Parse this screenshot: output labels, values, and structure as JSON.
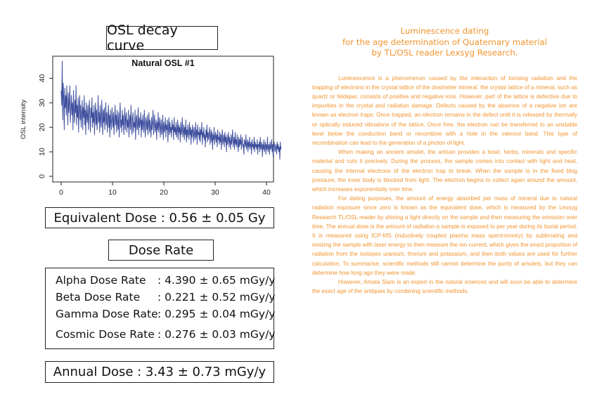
{
  "left": {
    "title": "OSL decay curve",
    "equivalent_dose": "Equivalent Dose : 0.56 ± 0.05 Gy",
    "dose_rate_header": "Dose Rate",
    "dose_rates": [
      {
        "label": "Alpha Dose Rate",
        "value": ": 4.390 ± 0.65 mGy/y"
      },
      {
        "label": "Beta Dose Rate",
        "value": ": 0.221 ± 0.52 mGy/y"
      },
      {
        "label": "Gamma Dose Rate",
        "value": ": 0.295 ± 0.04 mGy/y"
      },
      {
        "label": "Cosmic Dose Rate",
        "value": ": 0.276 ± 0.03 mGy/y"
      }
    ],
    "annual_dose": "Annual Dose : 3.43 ± 0.73 mGy/y"
  },
  "right": {
    "heading_lines": [
      "Luminescence dating",
      "for the age determination of Quaternary material",
      "by TL/OSL reader Lexsyg Research."
    ],
    "paragraphs": [
      "Luminescence is a phenomenon caused by the interaction of ionising radiation and the trapping of electrons in the crystal lattice of the dosimeter mineral. the crystal lattice of a mineral, such as quartz or feldspar, consists of positive and negative ions. However, part of the lattice is defective due to impurities in the crystal and radiation damage. Defects caused by the absence of a negative ion are known as electron traps. Once trapped, an electron remains in the defect until it is released by thermally or optically induced vibrations of the lattice. Once free, the electron can be transferred to an unstable level below the conduction band or recombine with a hole in the valence band. This type of recombination can lead to the generation of a photon of light.",
      "When making an ancient amulet, the artisan provides a bowl, herbs, minerals and specific material and cuts it precisely. During the process, the sample comes into contact with light and heat, causing the internal electrons of the electron trap to break. When the sample is in the fixed blog pressure, the inner body is blocked from light. The electron begins to collect again around the amount, which increases exponentially over time.",
      "For dating purposes, the amount of energy absorbed per mass of mineral due to natural radiation exposure since zero is known as the equivalent dose, which is measured by the Lexsyg Research TL/OSL reader by shining a light directly on the sample and then measuring the emission over time. The annual dose is the amount of radiation a sample is exposed to per year during its burial period. It is measured using ICP-MS (inductively coupled plasma mass spectrometry) by sublimating and ionizing the sample with laser energy to then measure the ion current, which gives the exact proportion of radiation from the isotopes uranium, thorium and potassium, and then both values are used for further calculation. To summarise, scientific methods still cannot determine the purity of amulets, but they can determine how long ago they were made.",
      "However, Amata Siam is an expert in the natural sciences and will soon be able to determine the exact age of the antiques by combining scientific methods."
    ],
    "text_color": "#f0932e"
  },
  "chart_data": {
    "type": "line",
    "title": "Natural OSL #1",
    "xlabel": "",
    "ylabel": "OSL intensity",
    "xlim": [
      0,
      40
    ],
    "ylim": [
      0,
      47
    ],
    "x_ticks": [
      0,
      10,
      20,
      30,
      40
    ],
    "y_ticks": [
      0,
      10,
      20,
      30,
      40
    ],
    "grid": false,
    "line_color": "#3f4f9e",
    "series": [
      {
        "x_start": 0,
        "x_step": 0.1,
        "values": [
          35,
          29,
          47,
          23,
          38,
          31,
          19,
          36,
          28,
          33,
          25,
          37,
          29,
          21,
          34,
          26,
          31,
          37,
          22,
          28,
          33,
          25,
          30,
          19,
          35,
          27,
          22,
          31,
          26,
          37,
          21,
          29,
          24,
          32,
          18,
          27,
          33,
          23,
          29,
          20,
          26,
          31,
          19,
          28,
          24,
          33,
          21,
          27,
          17,
          30,
          25,
          22,
          29,
          19,
          26,
          31,
          23,
          18,
          28,
          24,
          32,
          20,
          26,
          22,
          29,
          17,
          25,
          30,
          21,
          27,
          19,
          24,
          33,
          22,
          26,
          18,
          29,
          23,
          20,
          31,
          25,
          17,
          27,
          22,
          28,
          19,
          24,
          30,
          21,
          26,
          18,
          23,
          29,
          20,
          25,
          16,
          27,
          22,
          19,
          28,
          24,
          20,
          26,
          17,
          23,
          29,
          21,
          25,
          18,
          27,
          22,
          19,
          26,
          16,
          24,
          30,
          20,
          23,
          18,
          27,
          21,
          25,
          17,
          22,
          28,
          19,
          24,
          26,
          18,
          23,
          20,
          27,
          16,
          22,
          25,
          19,
          29,
          21,
          17,
          24,
          26,
          18,
          22,
          20,
          27,
          15,
          23,
          25,
          19,
          21,
          28,
          17,
          24,
          20,
          22,
          26,
          16,
          23,
          19,
          25,
          21,
          18,
          27,
          20,
          16,
          24,
          22,
          19,
          25,
          17,
          21,
          26,
          18,
          23,
          20,
          16,
          24,
          19,
          22,
          27,
          17,
          21,
          25,
          18,
          20,
          23,
          15,
          22,
          19,
          26,
          18,
          21,
          24,
          16,
          20,
          23,
          17,
          19,
          25,
          15,
          22,
          18,
          20,
          24,
          16,
          21,
          19,
          23,
          14,
          20,
          24,
          17,
          22,
          18,
          20,
          16,
          23,
          19,
          21,
          15,
          24,
          18,
          20,
          17,
          22,
          16,
          19,
          23,
          15,
          21,
          18,
          20,
          14,
          22,
          17,
          19,
          24,
          16,
          18,
          21,
          15,
          20,
          17,
          23,
          14,
          19,
          16,
          21,
          18,
          15,
          22,
          17,
          20,
          13,
          19,
          16,
          21,
          18,
          14,
          20,
          17,
          15,
          22,
          16,
          19,
          13,
          21,
          17,
          18,
          15,
          20,
          14,
          19,
          17,
          22,
          13,
          18,
          16,
          20,
          15,
          17,
          12,
          19,
          16,
          21,
          14,
          18,
          15,
          17,
          20,
          13,
          16,
          19,
          14,
          18,
          11,
          17,
          15,
          20,
          13,
          16,
          18,
          14,
          17,
          12,
          19,
          15,
          16,
          13,
          18,
          14,
          17,
          11,
          16,
          19,
          13,
          15,
          17,
          12,
          18,
          14,
          16,
          10,
          17,
          13,
          15,
          18,
          12,
          16,
          14,
          11,
          17,
          13,
          15,
          19,
          12,
          14,
          16,
          11,
          18,
          13,
          15,
          12,
          17,
          14,
          10,
          16,
          12,
          15,
          13,
          17,
          11,
          14,
          16,
          12,
          13,
          9,
          15,
          14,
          12,
          17,
          11,
          13,
          15,
          10,
          14,
          12,
          16,
          11,
          13,
          14,
          9,
          15,
          12,
          13,
          11,
          16,
          10,
          14,
          12,
          13,
          11,
          15,
          9,
          13,
          12,
          14,
          10,
          16,
          11,
          12,
          14,
          8,
          13,
          11,
          15,
          10,
          12,
          14,
          9,
          13,
          11,
          16,
          10,
          12,
          13,
          9,
          14,
          11,
          12,
          15,
          10,
          13,
          8,
          12,
          14,
          11,
          10,
          13,
          12,
          9,
          14,
          11,
          13,
          10,
          12,
          7,
          14,
          11,
          12,
          10,
          13,
          9,
          15,
          11,
          12,
          10,
          13,
          8,
          12,
          14,
          10,
          11,
          13,
          9,
          12,
          6,
          13,
          11,
          10,
          14,
          9,
          12,
          11,
          13,
          8,
          12,
          10,
          14,
          9,
          11,
          13,
          10,
          12,
          5,
          11,
          14,
          10,
          9,
          13,
          11,
          17,
          10
        ]
      }
    ]
  }
}
